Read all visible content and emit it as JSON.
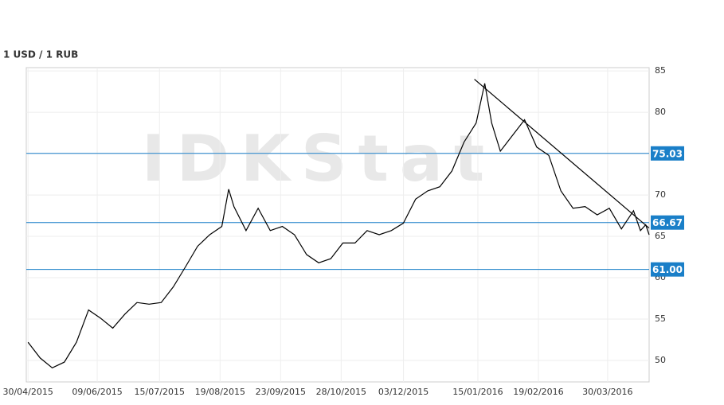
{
  "chart_data": {
    "type": "line",
    "title": "1 USD / 1 RUB",
    "watermark": "IDKStat",
    "x": [
      "30/04/2015",
      "07/05/2015",
      "14/05/2015",
      "21/05/2015",
      "28/05/2015",
      "04/06/2015",
      "11/06/2015",
      "18/06/2015",
      "25/06/2015",
      "02/07/2015",
      "09/07/2015",
      "16/07/2015",
      "23/07/2015",
      "30/07/2015",
      "06/08/2015",
      "13/08/2015",
      "20/08/2015",
      "24/08/2015",
      "27/08/2015",
      "03/09/2015",
      "10/09/2015",
      "17/09/2015",
      "24/09/2015",
      "01/10/2015",
      "08/10/2015",
      "15/10/2015",
      "22/10/2015",
      "29/10/2015",
      "05/11/2015",
      "12/11/2015",
      "19/11/2015",
      "26/11/2015",
      "03/12/2015",
      "10/12/2015",
      "17/12/2015",
      "24/12/2015",
      "31/12/2015",
      "07/01/2016",
      "14/01/2016",
      "19/01/2016",
      "23/01/2016",
      "28/01/2016",
      "04/02/2016",
      "11/02/2016",
      "18/02/2016",
      "25/02/2016",
      "03/03/2016",
      "10/03/2016",
      "17/03/2016",
      "24/03/2016",
      "31/03/2016",
      "07/04/2016",
      "14/04/2016",
      "18/04/2016",
      "21/04/2016",
      "23/04/2016"
    ],
    "series": [
      {
        "name": "USD/RUB",
        "color": "#000000",
        "values": [
          52.2,
          50.3,
          49.1,
          49.8,
          52.2,
          56.1,
          55.1,
          53.9,
          55.6,
          57.0,
          56.8,
          57.0,
          58.9,
          61.3,
          63.8,
          65.2,
          66.2,
          70.7,
          68.6,
          65.7,
          68.4,
          65.7,
          66.2,
          65.2,
          62.8,
          61.8,
          62.3,
          64.2,
          64.2,
          65.7,
          65.2,
          65.7,
          66.6,
          69.5,
          70.5,
          71.0,
          72.9,
          76.4,
          78.7,
          83.5,
          78.7,
          75.3,
          77.2,
          79.1,
          75.8,
          74.8,
          70.5,
          68.4,
          68.6,
          67.6,
          68.4,
          65.9,
          68.1,
          65.7,
          66.4,
          65.2
        ]
      }
    ],
    "xlim": [
      "29/04/2015",
      "23/04/2016"
    ],
    "xticks": [
      "30/04/2015",
      "09/06/2015",
      "15/07/2015",
      "19/08/2015",
      "23/09/2015",
      "28/10/2015",
      "03/12/2015",
      "15/01/2016",
      "19/02/2016",
      "30/03/2016"
    ],
    "ylim": [
      47.4,
      85.4
    ],
    "yticks": [
      50,
      55,
      60,
      65,
      70,
      75,
      80,
      85
    ],
    "grid": true,
    "hlines": [
      75.03,
      66.67,
      61
    ],
    "hline_labels": [
      "75.03",
      "66.67",
      "61.00"
    ],
    "hline_color": "#1a7fc8",
    "trendline": {
      "x": [
        "13/01/2016",
        "23/04/2016"
      ],
      "y": [
        84.0,
        66.0
      ],
      "color": "#000000"
    }
  }
}
